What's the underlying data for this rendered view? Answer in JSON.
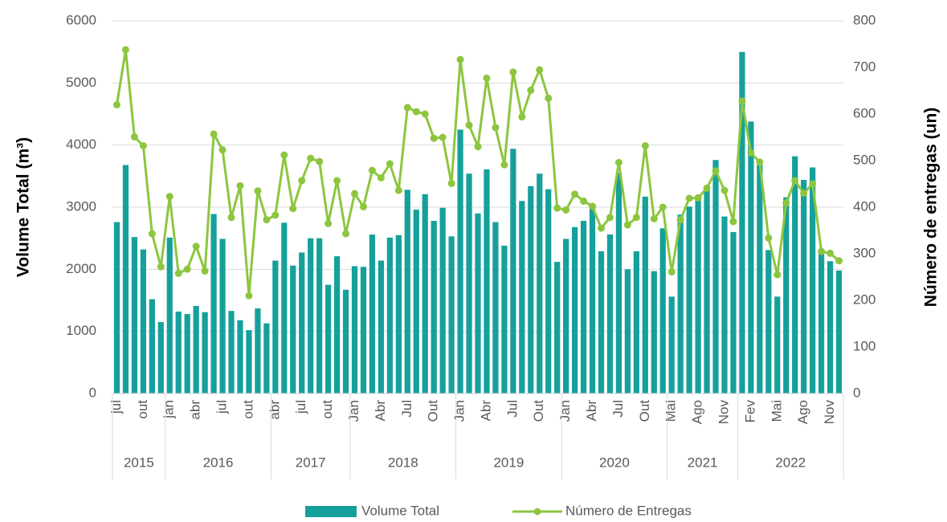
{
  "chart_data": {
    "type": "bar_line",
    "y_axis_title": "Volume Total (m³)",
    "y2_axis_title": "Número de entregas (un)",
    "categories": [
      "jul",
      null,
      null,
      "out",
      null,
      null,
      "jan",
      null,
      null,
      "abr",
      null,
      null,
      "jul",
      null,
      null,
      "out",
      null,
      null,
      "abr",
      null,
      null,
      "jul",
      null,
      null,
      "out",
      null,
      null,
      "Jan",
      null,
      null,
      "Abr",
      null,
      null,
      "Jul",
      null,
      null,
      "Out",
      null,
      null,
      "Jan",
      null,
      null,
      "Abr",
      null,
      null,
      "Jul",
      null,
      null,
      "Out",
      null,
      null,
      "Jan",
      null,
      null,
      "Abr",
      null,
      null,
      "Jul",
      null,
      null,
      "Out",
      null,
      null,
      "Mai",
      null,
      null,
      "Ago",
      null,
      null,
      "Nov",
      null,
      null,
      "Fev",
      null,
      null,
      "Mai",
      null,
      null,
      "Ago",
      null,
      null,
      "Nov",
      null
    ],
    "groups": [
      {
        "label": "2015",
        "span": 6
      },
      {
        "label": "2016",
        "span": 12
      },
      {
        "label": "2017",
        "span": 9
      },
      {
        "label": "2018",
        "span": 12
      },
      {
        "label": "2019",
        "span": 12
      },
      {
        "label": "2020",
        "span": 12
      },
      {
        "label": "2021",
        "span": 8
      },
      {
        "label": "2022",
        "span": 12
      }
    ],
    "series": [
      {
        "name": "Volume Total",
        "type": "bar",
        "color": "#16a09c",
        "axis": "y",
        "values": [
          2760,
          3680,
          2520,
          2320,
          1520,
          1150,
          2510,
          1320,
          1280,
          1410,
          1310,
          2890,
          2490,
          1330,
          1180,
          1020,
          1370,
          1130,
          2140,
          2750,
          2060,
          2270,
          2500,
          2500,
          1750,
          2210,
          1670,
          2050,
          2040,
          2560,
          2140,
          2510,
          2550,
          3280,
          2960,
          3210,
          2780,
          2990,
          2530,
          4250,
          3540,
          2900,
          3610,
          2760,
          2380,
          3940,
          3100,
          3340,
          3540,
          3290,
          2120,
          2490,
          2680,
          2780,
          2990,
          2290,
          2560,
          3550,
          2000,
          2290,
          3170,
          1970,
          2660,
          1560,
          2880,
          3010,
          3120,
          3280,
          3760,
          2850,
          2600,
          5500,
          4380,
          3680,
          2310,
          1560,
          3160,
          3820,
          3440,
          3640,
          2250,
          2130,
          1980
        ]
      },
      {
        "name": "Número de Entregas",
        "type": "line",
        "color": "#8cc63f",
        "axis": "y2",
        "values": [
          620,
          738,
          551,
          532,
          343,
          272,
          423,
          258,
          267,
          316,
          263,
          557,
          523,
          378,
          446,
          210,
          435,
          373,
          383,
          512,
          397,
          457,
          505,
          498,
          365,
          457,
          343,
          429,
          401,
          479,
          463,
          493,
          436,
          614,
          605,
          600,
          548,
          550,
          451,
          717,
          576,
          530,
          677,
          571,
          491,
          690,
          594,
          651,
          695,
          634,
          398,
          394,
          428,
          413,
          402,
          355,
          378,
          496,
          362,
          378,
          532,
          375,
          400,
          261,
          373,
          419,
          420,
          441,
          478,
          436,
          369,
          628,
          517,
          497,
          334,
          255,
          409,
          457,
          430,
          450,
          305,
          301,
          285
        ]
      }
    ],
    "ylim": [
      0,
      6000
    ],
    "yticks": [
      0,
      1000,
      2000,
      3000,
      4000,
      5000,
      6000
    ],
    "y2lim": [
      0,
      800
    ],
    "y2ticks": [
      0,
      100,
      200,
      300,
      400,
      500,
      600,
      700,
      800
    ],
    "grid": true,
    "legend": "bottom"
  }
}
